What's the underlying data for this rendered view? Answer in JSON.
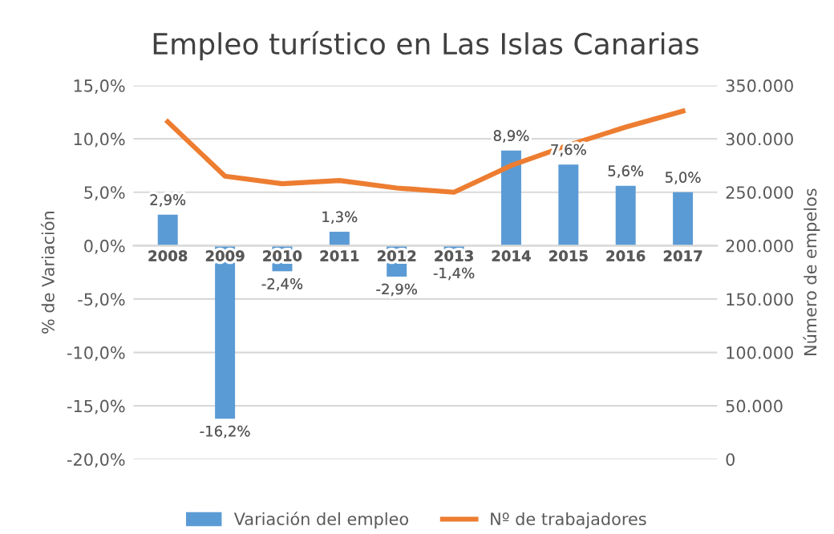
{
  "chart_data": {
    "type": "bar",
    "title": "Empleo turístico en Las Islas Canarias",
    "ylabel": "% de Variación",
    "y2label": "Número de empelos",
    "categories": [
      "2008",
      "2009",
      "2010",
      "2011",
      "2012",
      "2013",
      "2014",
      "2015",
      "2016",
      "2017"
    ],
    "series": [
      {
        "name": "Variación del empleo",
        "color": "#5b9bd5",
        "values": [
          2.9,
          -16.2,
          -2.4,
          1.3,
          -2.9,
          -1.4,
          8.9,
          7.6,
          5.6,
          5.0
        ],
        "value_labels": [
          "2,9%",
          "-16,2%",
          "-2,4%",
          "1,3%",
          "-2,9%",
          "-1,4%",
          "8,9%",
          "7,6%",
          "5,6%",
          "5,0%"
        ]
      },
      {
        "name": "Nº de trabajadores",
        "type": "line",
        "axis": "y2",
        "color": "#ed7d31",
        "values": [
          316000,
          265000,
          258000,
          261000,
          254000,
          250000,
          275000,
          294000,
          311000,
          326000
        ]
      }
    ],
    "ylim": [
      -20,
      15
    ],
    "yticks": [
      {
        "value": -20,
        "label": "-20,0%"
      },
      {
        "value": -15,
        "label": "-15,0%"
      },
      {
        "value": -10,
        "label": "-10,0%"
      },
      {
        "value": -5,
        "label": "-5,0%"
      },
      {
        "value": 0,
        "label": "0,0%"
      },
      {
        "value": 5,
        "label": "5,0%"
      },
      {
        "value": 10,
        "label": "10,0%"
      },
      {
        "value": 15,
        "label": "15,0%"
      }
    ],
    "y2lim": [
      0,
      350000
    ],
    "y2ticks": [
      {
        "value": 0,
        "label": "0"
      },
      {
        "value": 50000,
        "label": "50.000"
      },
      {
        "value": 100000,
        "label": "100.000"
      },
      {
        "value": 150000,
        "label": "150.000"
      },
      {
        "value": 200000,
        "label": "200.000"
      },
      {
        "value": 250000,
        "label": "250.000"
      },
      {
        "value": 300000,
        "label": "300.000"
      },
      {
        "value": 350000,
        "label": "350.000"
      }
    ],
    "grid": "y",
    "legend": "bottom",
    "marker": "none",
    "line_style": "solid"
  }
}
